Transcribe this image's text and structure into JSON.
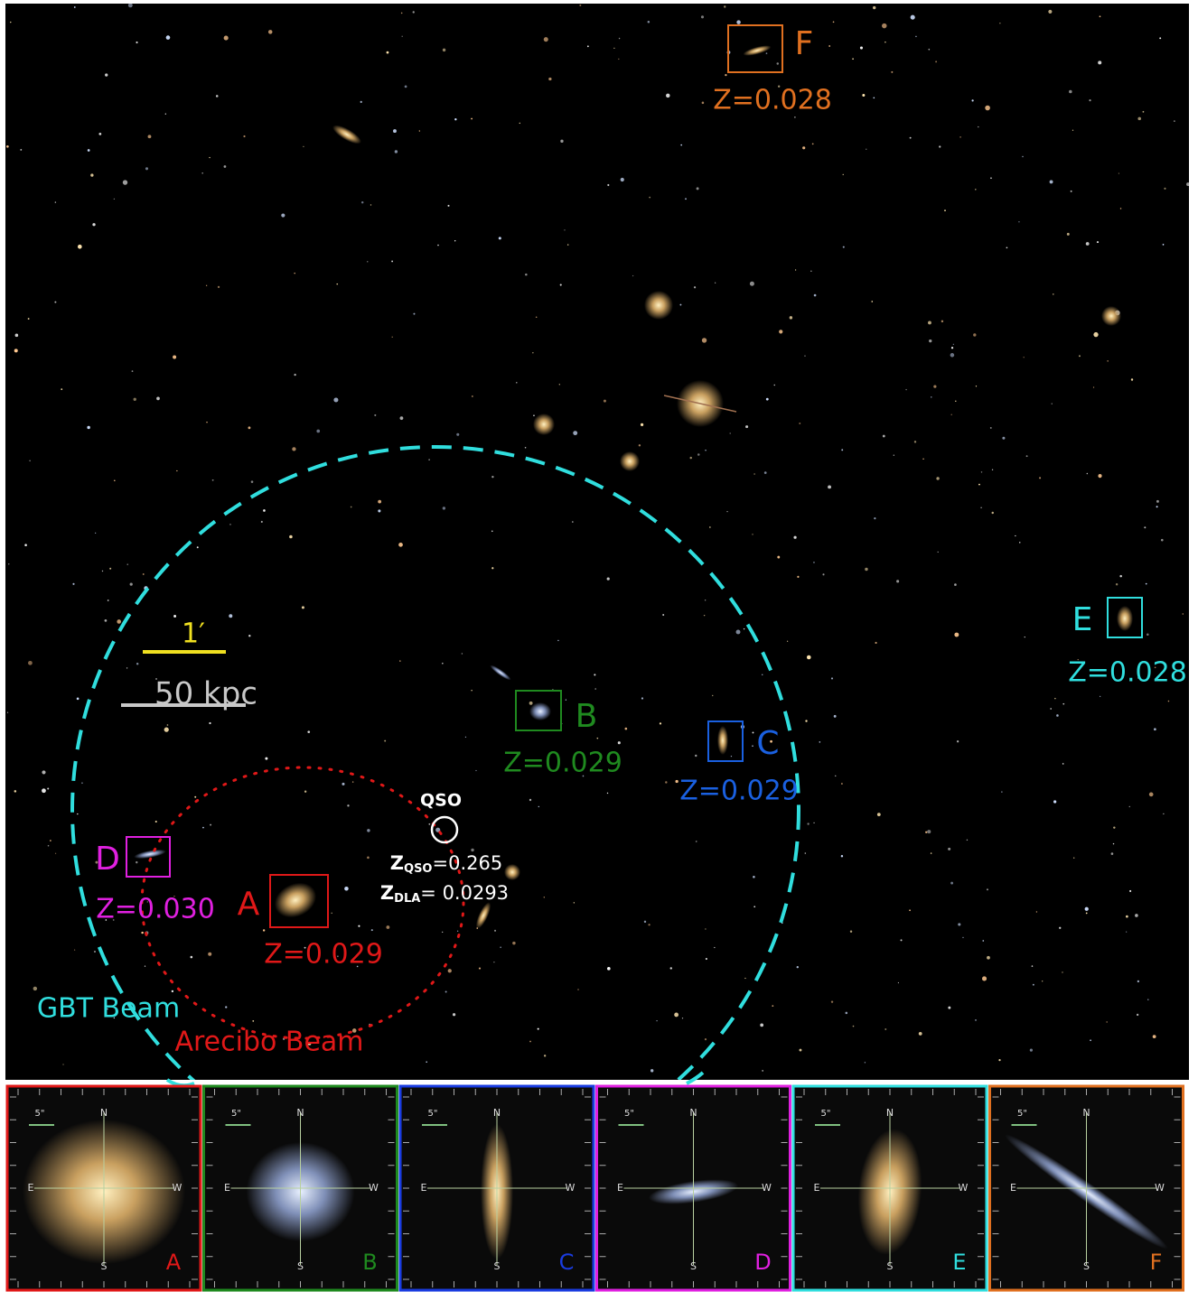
{
  "annotations": {
    "F": {
      "label": "F",
      "redshift": "Z=0.028"
    },
    "E": {
      "label": "E",
      "redshift": "Z=0.028"
    },
    "B": {
      "label": "B",
      "redshift": "Z=0.029"
    },
    "C": {
      "label": "C",
      "redshift": "Z=0.029"
    },
    "D": {
      "label": "D",
      "redshift": "Z=0.030"
    },
    "A": {
      "label": "A",
      "redshift": "Z=0.029"
    },
    "qso": {
      "label": "QSO",
      "z_qso": {
        "main": "Z",
        "sub": "QSO",
        "rest": "=0.265"
      },
      "z_dla": {
        "main": "Z",
        "sub": "DLA",
        "rest": "= 0.0293"
      }
    },
    "scale_angle": "1′",
    "scale_distance": "50 kpc",
    "gbt_beam": "GBT Beam",
    "arecibo_beam": "Arecibo Beam"
  },
  "insets": {
    "compass": {
      "scale": "5\"",
      "north": "N",
      "east": "E",
      "west": "W",
      "south": "S"
    },
    "panels": [
      {
        "label": "A",
        "color": "#e01818"
      },
      {
        "label": "B",
        "color": "#1f8a1f"
      },
      {
        "label": "C",
        "color": "#1a3ce0"
      },
      {
        "label": "D",
        "color": "#e020e0"
      },
      {
        "label": "E",
        "color": "#30dede"
      },
      {
        "label": "F",
        "color": "#e07020"
      }
    ]
  }
}
